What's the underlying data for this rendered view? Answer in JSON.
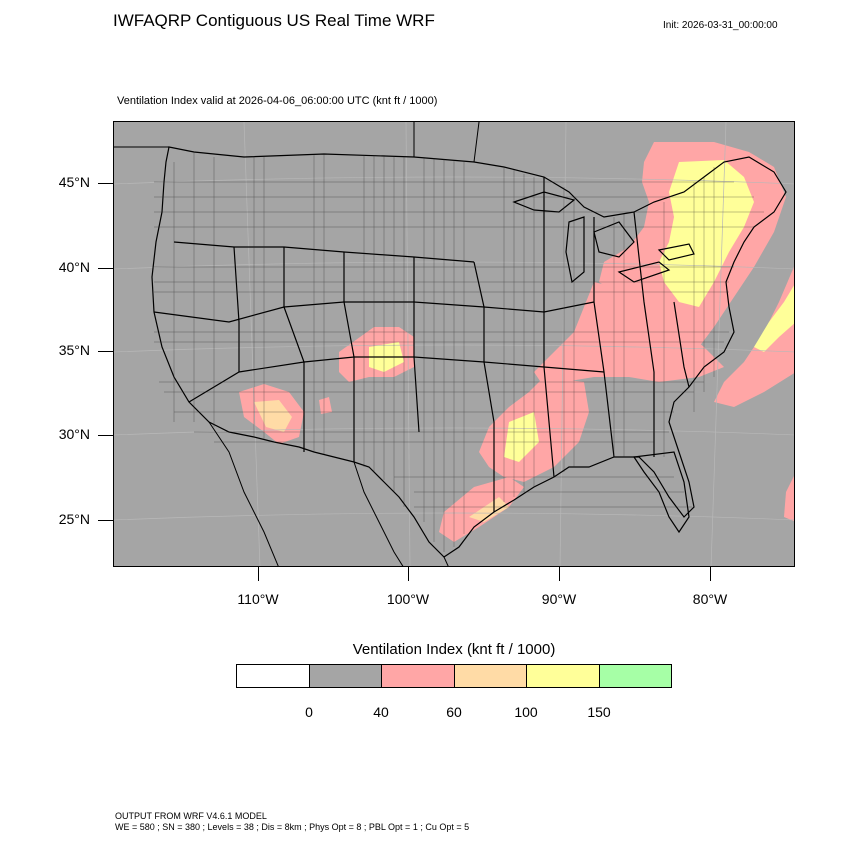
{
  "title": "IWFAQRP Contiguous US Real Time WRF",
  "init": "Init: 2026-03-31_00:00:00",
  "subtitle": "Ventilation Index valid at 2026-04-06_06:00:00 UTC   (knt ft / 1000)",
  "lat_labels": [
    "45°N",
    "40°N",
    "35°N",
    "30°N",
    "25°N"
  ],
  "lon_labels": [
    "110°W",
    "100°W",
    "90°W",
    "80°W"
  ],
  "colorbar": {
    "title": "Ventilation Index  (knt ft / 1000)",
    "colors": [
      "#ffffff",
      "#a5a5a5",
      "#ffa6a6",
      "#ffdba6",
      "#ffff99",
      "#a6ffa6"
    ],
    "tick_labels": [
      "0",
      "40",
      "60",
      "100",
      "150"
    ]
  },
  "colors": {
    "land_background": "#a5a5a5",
    "pink": "#ffa6a6",
    "peach": "#ffdba6",
    "yellow": "#ffff99"
  },
  "footer": {
    "line1": "OUTPUT FROM WRF V4.6.1 MODEL",
    "line2": "WE = 580 ; SN = 380 ; Levels = 38 ; Dis = 8km ; Phys Opt = 8 ; PBL Opt = 1 ; Cu Opt = 5"
  }
}
